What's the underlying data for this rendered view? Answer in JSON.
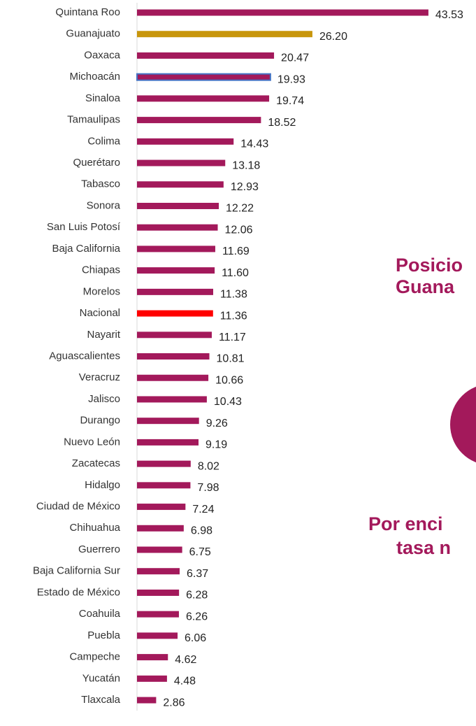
{
  "chart_data": {
    "type": "barh",
    "categories": [
      "Quintana Roo",
      "Guanajuato",
      "Oaxaca",
      "Michoacán",
      "Sinaloa",
      "Tamaulipas",
      "Colima",
      "Querétaro",
      "Tabasco",
      "Sonora",
      "San Luis Potosí",
      "Baja California",
      "Chiapas",
      "Morelos",
      "Nacional",
      "Nayarit",
      "Aguascalientes",
      "Veracruz",
      "Jalisco",
      "Durango",
      "Nuevo León",
      "Zacatecas",
      "Hidalgo",
      "Ciudad de México",
      "Chihuahua",
      "Guerrero",
      "Baja California Sur",
      "Estado de México",
      "Coahuila",
      "Puebla",
      "Campeche",
      "Yucatán",
      "Tlaxcala"
    ],
    "values": [
      43.53,
      26.2,
      20.47,
      19.93,
      19.74,
      18.52,
      14.43,
      13.18,
      12.93,
      12.22,
      12.06,
      11.69,
      11.6,
      11.38,
      11.36,
      11.17,
      10.81,
      10.66,
      10.43,
      9.26,
      9.19,
      8.02,
      7.98,
      7.24,
      6.98,
      6.75,
      6.37,
      6.28,
      6.26,
      6.06,
      4.62,
      4.48,
      2.86
    ],
    "value_labels": [
      "43.53",
      "26.20",
      "20.47",
      "19.93",
      "19.74",
      "18.52",
      "14.43",
      "13.18",
      "12.93",
      "12.22",
      "12.06",
      "11.69",
      "11.60",
      "11.38",
      "11.36",
      "11.17",
      "10.81",
      "10.66",
      "10.43",
      "9.26",
      "9.19",
      "8.02",
      "7.98",
      "7.24",
      "6.98",
      "6.75",
      "6.37",
      "6.28",
      "6.26",
      "6.06",
      "4.62",
      "4.48",
      "2.86"
    ],
    "color": "#a3195b",
    "colors": [
      "#a3195b",
      "#c8960c",
      "#a3195b",
      "#a3195b",
      "#a3195b",
      "#a3195b",
      "#a3195b",
      "#a3195b",
      "#a3195b",
      "#a3195b",
      "#a3195b",
      "#a3195b",
      "#a3195b",
      "#a3195b",
      "#ff0000",
      "#a3195b",
      "#a3195b",
      "#a3195b",
      "#a3195b",
      "#a3195b",
      "#a3195b",
      "#a3195b",
      "#a3195b",
      "#a3195b",
      "#a3195b",
      "#a3195b",
      "#a3195b",
      "#a3195b",
      "#a3195b",
      "#a3195b",
      "#a3195b",
      "#a3195b",
      "#a3195b"
    ],
    "edge_colors": [
      null,
      null,
      null,
      "#4472c4",
      null,
      null,
      null,
      null,
      null,
      null,
      null,
      null,
      null,
      null,
      null,
      null,
      null,
      null,
      null,
      null,
      null,
      null,
      null,
      null,
      null,
      null,
      null,
      null,
      null,
      null,
      null,
      null,
      null
    ],
    "xlim": [
      0,
      45
    ]
  },
  "side_texts": [
    "Posicio",
    "Guana",
    "Por enci",
    "tasa n"
  ]
}
